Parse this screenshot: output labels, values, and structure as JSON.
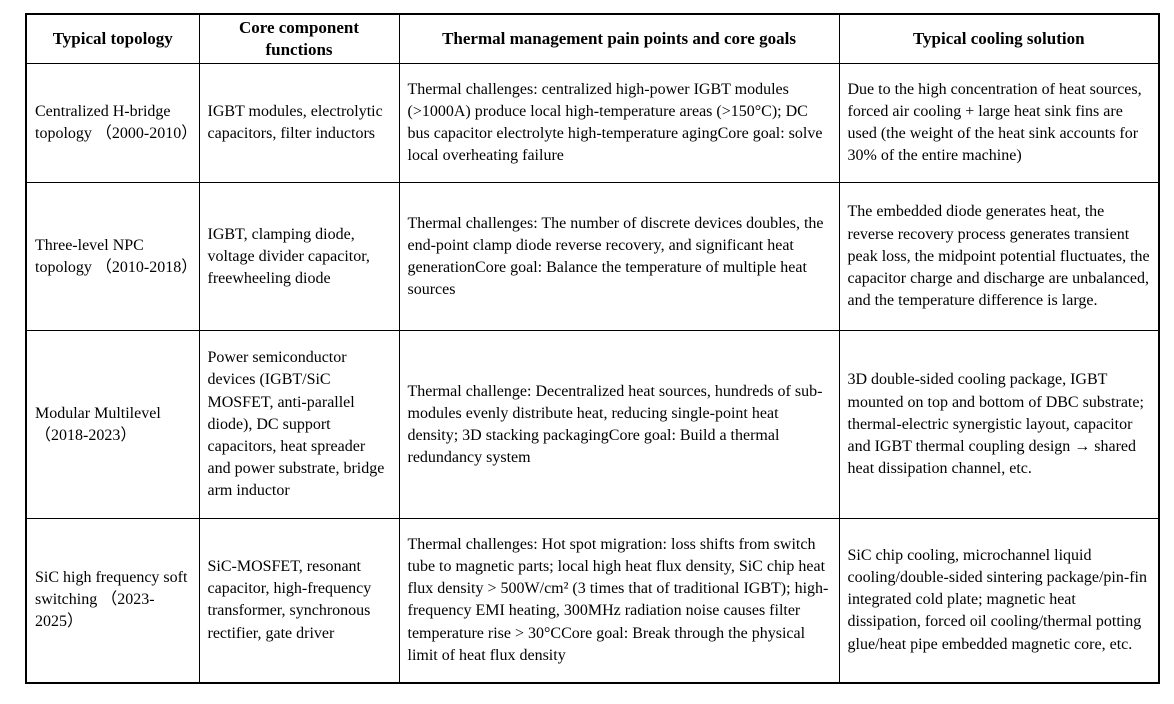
{
  "table": {
    "headers": [
      "Typical topology",
      "Core component functions",
      "Thermal management pain points and core goals",
      "Typical cooling solution"
    ],
    "rows": [
      {
        "cells": [
          "Centralized H-bridge topology （2000-2010）",
          "IGBT modules, electrolytic capacitors, filter inductors",
          "Thermal challenges: centralized high-power IGBT modules (>1000A) produce local high-temperature areas (>150°C); DC bus capacitor electrolyte high-temperature agingCore goal: solve local overheating failure",
          "Due to the high concentration of heat sources, forced air cooling + large heat sink fins are used (the weight of the heat sink accounts for 30% of the entire machine)"
        ]
      },
      {
        "cells": [
          "Three-level NPC topology （2010-2018）",
          "IGBT, clamping diode, voltage divider capacitor, freewheeling diode",
          "Thermal challenges: The number of discrete devices doubles, the end-point clamp diode reverse recovery, and significant heat generationCore goal: Balance the temperature of multiple heat sources",
          "The embedded diode generates heat, the reverse recovery process generates transient peak loss, the midpoint potential fluctuates, the capacitor charge and discharge are unbalanced, and the temperature difference is large."
        ]
      },
      {
        "cells": [
          "Modular Multilevel （2018-2023）",
          "Power semiconductor devices (IGBT/SiC MOSFET, anti-parallel diode), DC support capacitors, heat spreader and power substrate, bridge arm inductor",
          "Thermal challenge: Decentralized heat sources, hundreds of sub-modules evenly distribute heat, reducing single-point heat density; 3D stacking packagingCore goal: Build a thermal redundancy system",
          "3D double-sided cooling package, IGBT mounted on top and bottom of DBC substrate; thermal-electric synergistic layout, capacitor and IGBT thermal coupling design → shared heat dissipation channel, etc."
        ]
      },
      {
        "cells": [
          "SiC high frequency soft switching （2023-2025）",
          "SiC-MOSFET, resonant capacitor, high-frequency transformer, synchronous rectifier, gate driver",
          "Thermal challenges: Hot spot migration: loss shifts from switch tube to magnetic parts; local high heat flux density, SiC chip heat flux density > 500W/cm² (3 times that of traditional IGBT); high-frequency EMI heating, 300MHz radiation noise causes filter temperature rise > 30°CCore goal: Break through the physical limit of heat flux density",
          "SiC chip cooling, microchannel liquid cooling/double-sided sintering package/pin-fin integrated cold plate; magnetic heat dissipation, forced oil cooling/thermal potting glue/heat pipe embedded magnetic core, etc."
        ]
      }
    ]
  }
}
